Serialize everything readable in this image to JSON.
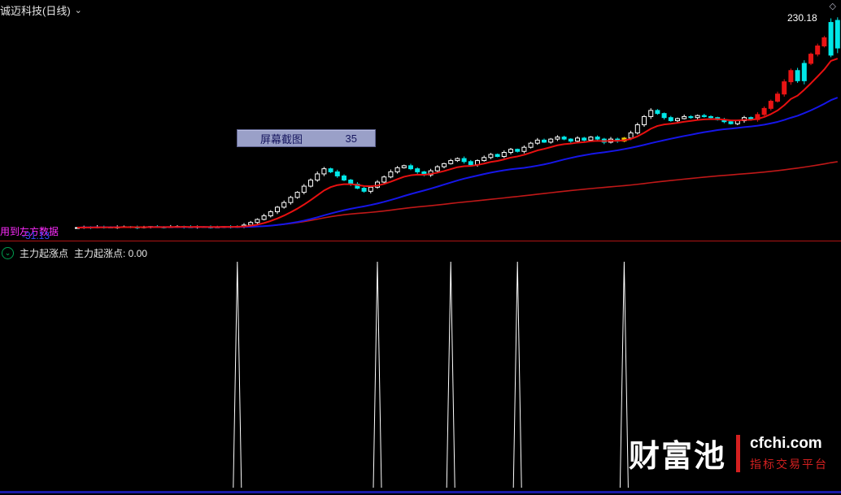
{
  "header": {
    "stock_title": "诚迈科技(日线)",
    "dropdown_icon": "⌄",
    "corner_icon": "◇",
    "price_label": "230.18"
  },
  "overlay": {
    "magenta_text": "用到左方数据",
    "blue_value": "-31.13"
  },
  "tooltip": {
    "label": "屏幕截图",
    "value": "35"
  },
  "indicator_header": {
    "collapse_icon": "⌄",
    "name": "主力起涨点",
    "value_text": "主力起涨点: 0.00"
  },
  "watermark": {
    "brand": "财富池",
    "site": "cfchi.com",
    "tagline": "指标交易平台"
  },
  "chart_data": {
    "type": "candlestick+signals",
    "title": "诚迈科技(日线)",
    "latest_price": 230.18,
    "ylim": [
      20,
      240
    ],
    "candle_colors": {
      "w": "#ffffff",
      "c": "#00e8e8",
      "r": "#e81414",
      "y": "#f0d000"
    },
    "line_colors": {
      "fast": "#e81010",
      "mid": "#1616e8",
      "slow": "#c01818"
    },
    "ma": {
      "fast_period": 10,
      "mid_period": 30,
      "slow": "cumulative-mean"
    },
    "candles": [
      [
        29.5,
        "w"
      ],
      [
        30,
        "w"
      ],
      [
        29.8,
        "c"
      ],
      [
        30.2,
        "w"
      ],
      [
        30,
        "c"
      ],
      [
        29.6,
        "c"
      ],
      [
        30.1,
        "w"
      ],
      [
        30.4,
        "w"
      ],
      [
        30,
        "c"
      ],
      [
        29.7,
        "c"
      ],
      [
        30.2,
        "w"
      ],
      [
        30.5,
        "w"
      ],
      [
        30.1,
        "c"
      ],
      [
        29.9,
        "c"
      ],
      [
        30.3,
        "w"
      ],
      [
        30.6,
        "w"
      ],
      [
        30.2,
        "c"
      ],
      [
        30,
        "c"
      ],
      [
        30.4,
        "w"
      ],
      [
        30.1,
        "c"
      ],
      [
        29.8,
        "c"
      ],
      [
        30.2,
        "w"
      ],
      [
        30.5,
        "w"
      ],
      [
        30.3,
        "c"
      ],
      [
        30.6,
        "w"
      ],
      [
        32,
        "w"
      ],
      [
        34.5,
        "w"
      ],
      [
        37.5,
        "w"
      ],
      [
        41,
        "w"
      ],
      [
        45,
        "w"
      ],
      [
        49.5,
        "w"
      ],
      [
        54,
        "w"
      ],
      [
        59,
        "w"
      ],
      [
        64,
        "w"
      ],
      [
        70,
        "w"
      ],
      [
        76,
        "w"
      ],
      [
        82,
        "w"
      ],
      [
        87,
        "w"
      ],
      [
        84,
        "c"
      ],
      [
        80,
        "c"
      ],
      [
        76,
        "c"
      ],
      [
        72,
        "c"
      ],
      [
        68,
        "c"
      ],
      [
        65,
        "c"
      ],
      [
        69,
        "w"
      ],
      [
        74,
        "w"
      ],
      [
        79,
        "w"
      ],
      [
        84,
        "w"
      ],
      [
        88,
        "w"
      ],
      [
        90,
        "w"
      ],
      [
        87,
        "c"
      ],
      [
        84,
        "c"
      ],
      [
        81,
        "c"
      ],
      [
        85,
        "w"
      ],
      [
        89,
        "w"
      ],
      [
        92,
        "w"
      ],
      [
        95,
        "w"
      ],
      [
        97,
        "w"
      ],
      [
        94,
        "c"
      ],
      [
        91,
        "c"
      ],
      [
        95,
        "w"
      ],
      [
        98,
        "w"
      ],
      [
        101,
        "w"
      ],
      [
        99,
        "c"
      ],
      [
        103,
        "w"
      ],
      [
        106,
        "w"
      ],
      [
        104,
        "c"
      ],
      [
        108,
        "w"
      ],
      [
        112,
        "w"
      ],
      [
        115,
        "w"
      ],
      [
        113,
        "c"
      ],
      [
        116,
        "w"
      ],
      [
        118,
        "w"
      ],
      [
        116,
        "c"
      ],
      [
        114,
        "c"
      ],
      [
        117,
        "w"
      ],
      [
        115,
        "c"
      ],
      [
        118,
        "w"
      ],
      [
        116,
        "c"
      ],
      [
        113,
        "c"
      ],
      [
        116,
        "w"
      ],
      [
        114,
        "c"
      ],
      [
        117,
        "y"
      ],
      [
        122,
        "w"
      ],
      [
        130,
        "w"
      ],
      [
        138,
        "w"
      ],
      [
        144,
        "w"
      ],
      [
        141,
        "c"
      ],
      [
        137,
        "c"
      ],
      [
        134,
        "c"
      ],
      [
        136,
        "w"
      ],
      [
        138,
        "w"
      ],
      [
        137,
        "c"
      ],
      [
        139,
        "w"
      ],
      [
        138,
        "c"
      ],
      [
        137,
        "c"
      ],
      [
        135,
        "c"
      ],
      [
        133,
        "c"
      ],
      [
        131,
        "c"
      ],
      [
        134,
        "w"
      ],
      [
        137,
        "w"
      ],
      [
        135,
        "c"
      ],
      [
        140,
        "r"
      ],
      [
        146,
        "r"
      ],
      [
        153,
        "r"
      ],
      [
        160,
        "r"
      ],
      [
        172,
        "r"
      ],
      [
        183,
        "r"
      ],
      [
        173,
        "c"
      ],
      [
        190,
        "c"
      ],
      [
        199,
        "r"
      ],
      [
        207,
        "r"
      ],
      [
        215,
        "r"
      ],
      [
        230,
        "c",
        234,
        196,
        198
      ],
      [
        205,
        "c",
        235,
        200,
        232
      ]
    ],
    "signals": {
      "name": "主力起涨点",
      "current_value": "0.00",
      "candle_indices": [
        24,
        45,
        56,
        66,
        82
      ],
      "spike_color": "#ffffff"
    }
  }
}
